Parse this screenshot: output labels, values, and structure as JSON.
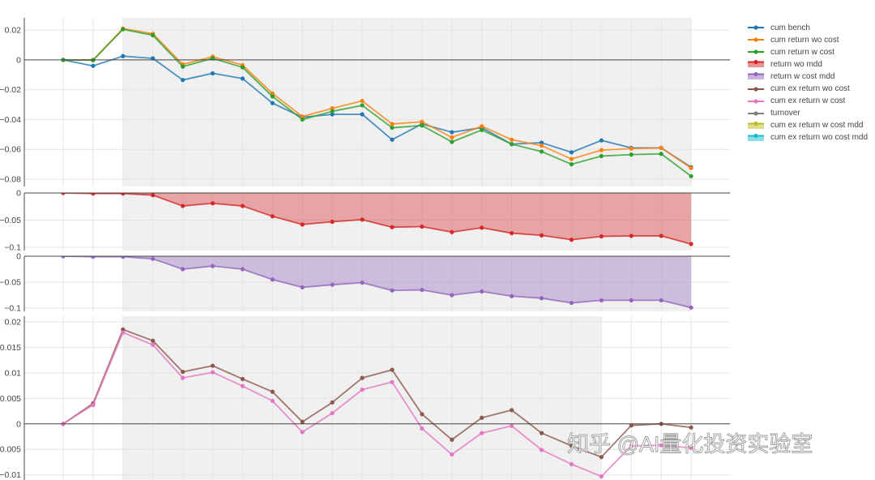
{
  "watermark": "知乎 @AI量化投资实验室",
  "legend": [
    {
      "label": "cum bench",
      "color": "#1f77b4",
      "style": "line"
    },
    {
      "label": "cum return wo cost",
      "color": "#ff7f0e",
      "style": "line"
    },
    {
      "label": "cum return w cost",
      "color": "#2ca02c",
      "style": "line"
    },
    {
      "label": "return wo mdd",
      "color": "#d62728",
      "style": "fill"
    },
    {
      "label": "return w cost mdd",
      "color": "#9467bd",
      "style": "fill"
    },
    {
      "label": "cum ex return wo cost",
      "color": "#8c564b",
      "style": "line"
    },
    {
      "label": "cum ex return w cost",
      "color": "#e377c2",
      "style": "line"
    },
    {
      "label": "turnover",
      "color": "#7f7f7f",
      "style": "line"
    },
    {
      "label": "cum ex return w cost mdd",
      "color": "#bcbd22",
      "style": "fill"
    },
    {
      "label": "cum ex return wo cost mdd",
      "color": "#17becf",
      "style": "fill"
    }
  ],
  "chart_data": [
    {
      "type": "line",
      "x": [
        0,
        1,
        2,
        3,
        4,
        5,
        6,
        7,
        8,
        9,
        10,
        11,
        12,
        13,
        14,
        15,
        16,
        17,
        18,
        19,
        20,
        21
      ],
      "ylim": [
        -0.0849,
        0.0282
      ],
      "grid": true,
      "shaded_x": [
        2,
        21
      ],
      "yticks": {
        "values": [
          0.02,
          0,
          -0.02,
          -0.04,
          -0.06,
          -0.08
        ],
        "labels": [
          "0.02",
          "0",
          "−0.02",
          "−0.04",
          "−0.06",
          "−0.08"
        ]
      },
      "series": [
        {
          "name": "cum bench",
          "color": "#1f77b4",
          "values": [
            0,
            -0.004,
            0.0025,
            0.001,
            -0.0135,
            -0.009,
            -0.0125,
            -0.029,
            -0.0385,
            -0.0365,
            -0.0365,
            -0.0535,
            -0.043,
            -0.0485,
            -0.0455,
            -0.0565,
            -0.0555,
            -0.062,
            -0.054,
            -0.059,
            -0.059,
            -0.072
          ]
        },
        {
          "name": "cum return wo cost",
          "color": "#ff7f0e",
          "values": [
            0,
            0,
            0.021,
            0.0175,
            -0.003,
            0.0022,
            -0.0035,
            -0.0225,
            -0.038,
            -0.0325,
            -0.0275,
            -0.043,
            -0.0415,
            -0.052,
            -0.0445,
            -0.0535,
            -0.0575,
            -0.0665,
            -0.0605,
            -0.0595,
            -0.059,
            -0.0725
          ]
        },
        {
          "name": "cum return w cost",
          "color": "#2ca02c",
          "values": [
            0,
            -0.0002,
            0.0205,
            0.0165,
            -0.0045,
            0.001,
            -0.005,
            -0.0245,
            -0.04,
            -0.0345,
            -0.0305,
            -0.0455,
            -0.044,
            -0.055,
            -0.047,
            -0.0565,
            -0.0615,
            -0.07,
            -0.0645,
            -0.0635,
            -0.063,
            -0.078
          ]
        }
      ]
    },
    {
      "type": "area",
      "x": [
        0,
        1,
        2,
        3,
        4,
        5,
        6,
        7,
        8,
        9,
        10,
        11,
        12,
        13,
        14,
        15,
        16,
        17,
        18,
        19,
        20,
        21
      ],
      "ylim": [
        -0.106,
        0
      ],
      "grid": true,
      "shaded_x": [
        2,
        21
      ],
      "yticks": {
        "values": [
          0,
          -0.05,
          -0.1
        ],
        "labels": [
          "0",
          "−0.05",
          "−0.1"
        ]
      },
      "series": [
        {
          "name": "return wo mdd",
          "color": "#d62728",
          "fill": "tozeroy",
          "values": [
            0,
            -0.001,
            -0.001,
            -0.004,
            -0.024,
            -0.019,
            -0.024,
            -0.043,
            -0.058,
            -0.053,
            -0.049,
            -0.063,
            -0.062,
            -0.072,
            -0.064,
            -0.074,
            -0.078,
            -0.086,
            -0.08,
            -0.079,
            -0.079,
            -0.094
          ]
        }
      ]
    },
    {
      "type": "area",
      "x": [
        0,
        1,
        2,
        3,
        4,
        5,
        6,
        7,
        8,
        9,
        10,
        11,
        12,
        13,
        14,
        15,
        16,
        17,
        18,
        19,
        20,
        21
      ],
      "ylim": [
        -0.1063,
        0
      ],
      "grid": true,
      "shaded_x": [
        2,
        21
      ],
      "yticks": {
        "values": [
          0,
          -0.05,
          -0.1
        ],
        "labels": [
          "0",
          "−0.05",
          "−0.1"
        ]
      },
      "series": [
        {
          "name": "return w cost mdd",
          "color": "#9467bd",
          "fill": "tozeroy",
          "values": [
            0,
            -0.001,
            -0.001,
            -0.005,
            -0.025,
            -0.019,
            -0.025,
            -0.045,
            -0.06,
            -0.055,
            -0.051,
            -0.066,
            -0.065,
            -0.075,
            -0.068,
            -0.077,
            -0.081,
            -0.09,
            -0.085,
            -0.085,
            -0.085,
            -0.099
          ]
        }
      ]
    },
    {
      "type": "line",
      "x": [
        0,
        1,
        2,
        3,
        4,
        5,
        6,
        7,
        8,
        9,
        10,
        11,
        12,
        13,
        14,
        15,
        16,
        17,
        18,
        19,
        20,
        21
      ],
      "ylim": [
        -0.011,
        0.0211
      ],
      "grid": true,
      "shaded_x": [
        2,
        18
      ],
      "yticks": {
        "values": [
          0.02,
          0.015,
          0.01,
          0.005,
          0,
          -0.005,
          -0.01
        ],
        "labels": [
          "0.02",
          "0.015",
          "0.01",
          "0.005",
          "0",
          "−0.005",
          "−0.01"
        ]
      },
      "series": [
        {
          "name": "cum ex return wo cost",
          "color": "#8c564b",
          "values": [
            0,
            0.004,
            0.0185,
            0.0163,
            0.0102,
            0.0114,
            0.0088,
            0.0063,
            0.0004,
            0.0042,
            0.009,
            0.0106,
            0.0019,
            -0.0031,
            0.0012,
            0.0027,
            -0.0018,
            -0.0043,
            -0.0065,
            -0.0003,
            0,
            -0.0007
          ]
        },
        {
          "name": "cum ex return w cost",
          "color": "#e377c2",
          "values": [
            0,
            0.0037,
            0.0179,
            0.0155,
            0.009,
            0.0101,
            0.0074,
            0.0045,
            -0.0016,
            0.0021,
            0.0067,
            0.0082,
            -0.0009,
            -0.006,
            -0.0018,
            -0.0004,
            -0.0051,
            -0.0079,
            -0.0103,
            -0.0043,
            -0.0042,
            -0.0047
          ]
        }
      ]
    }
  ]
}
